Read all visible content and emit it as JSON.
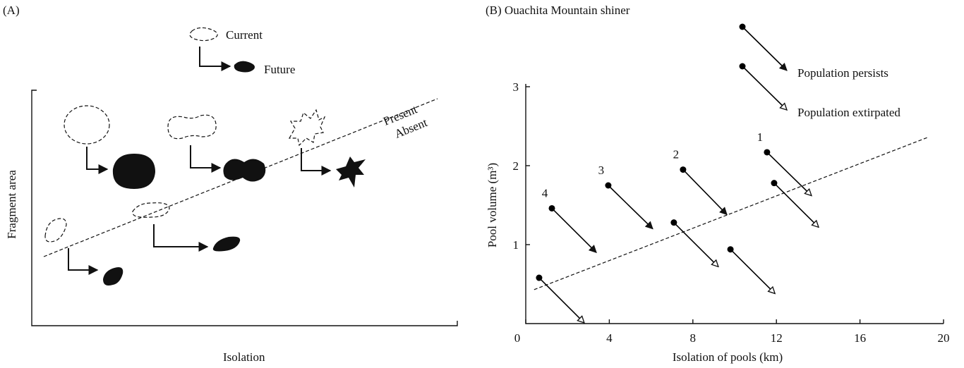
{
  "panel_a": {
    "label": "(A)",
    "legend_current": "Current",
    "legend_future": "Future",
    "line_above": "Present",
    "line_below": "Absent",
    "y_label": "Fragment area",
    "x_label": "Isolation"
  },
  "chart_data": {
    "type": "arrow",
    "title": "(B) Ouachita Mountain shiner",
    "x_label": "Isolation of pools (km)",
    "y_label": "Pool volume (m³)",
    "xlim": [
      0,
      20
    ],
    "ylim": [
      0,
      3
    ],
    "xticks": [
      0,
      4,
      8,
      12,
      16,
      20
    ],
    "yticks": [
      1,
      2,
      3
    ],
    "threshold": {
      "x": [
        0.4,
        19.26
      ],
      "y": [
        0.43,
        2.36
      ]
    },
    "series": [
      {
        "name": "Population persists",
        "color": "#000000",
        "head": "filled",
        "x": [
          1.25,
          3.95,
          7.53
        ],
        "y": [
          1.46,
          1.75,
          1.95
        ],
        "x_end": [
          3.38,
          6.08,
          9.63
        ],
        "y_end": [
          0.9,
          1.2,
          1.38
        ],
        "point_labels": [
          "4",
          "3",
          "2"
        ]
      },
      {
        "name": "Population extirpated",
        "color": "#000000",
        "head": "open",
        "x": [
          11.55,
          0.64,
          7.09,
          9.8,
          11.89
        ],
        "y": [
          2.17,
          0.58,
          1.28,
          0.94,
          1.78
        ],
        "x_end": [
          13.68,
          2.8,
          9.22,
          11.93,
          14.02
        ],
        "y_end": [
          1.62,
          0.01,
          0.72,
          0.38,
          1.22
        ],
        "point_labels": [
          "1",
          null,
          null,
          null,
          null
        ]
      }
    ]
  }
}
